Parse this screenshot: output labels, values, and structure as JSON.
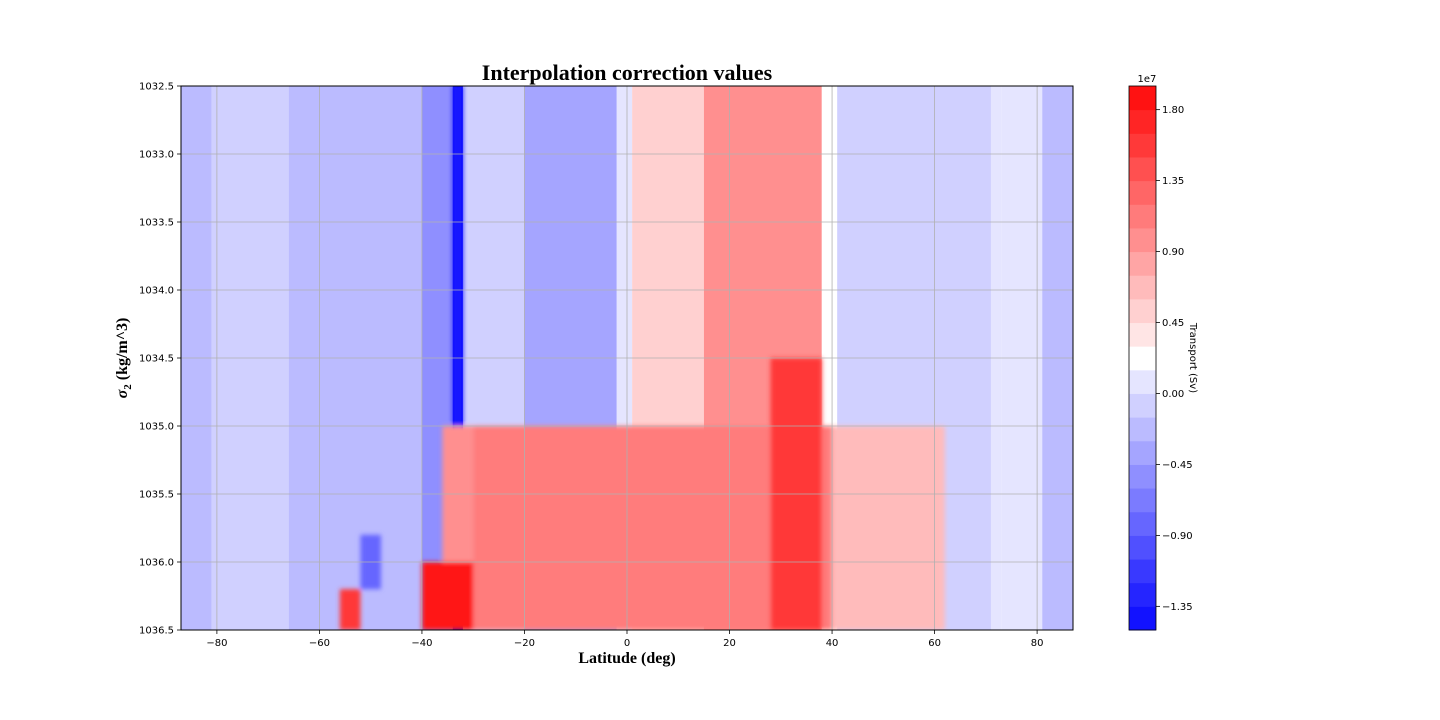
{
  "chart_data": {
    "type": "heatmap",
    "subtype": "filled-contour",
    "title": "Interpolation correction values",
    "xlabel": "Latitude (deg)",
    "ylabel_symbol": "σ",
    "ylabel_subscript": "2",
    "ylabel_units": "(kg/m^3)",
    "xlim": [
      -87,
      87
    ],
    "ylim": [
      1032.5,
      1036.5
    ],
    "y_inverted": true,
    "grid": true,
    "x_ticks": [
      {
        "value": -80,
        "label": "−80"
      },
      {
        "value": -60,
        "label": "−60"
      },
      {
        "value": -40,
        "label": "−40"
      },
      {
        "value": -20,
        "label": "−20"
      },
      {
        "value": 0,
        "label": "0"
      },
      {
        "value": 20,
        "label": "20"
      },
      {
        "value": 40,
        "label": "40"
      },
      {
        "value": 60,
        "label": "60"
      },
      {
        "value": 80,
        "label": "80"
      }
    ],
    "y_ticks": [
      {
        "value": 1032.5,
        "label": "1032.5"
      },
      {
        "value": 1033.0,
        "label": "1033.0"
      },
      {
        "value": 1033.5,
        "label": "1033.5"
      },
      {
        "value": 1034.0,
        "label": "1034.0"
      },
      {
        "value": 1034.5,
        "label": "1034.5"
      },
      {
        "value": 1035.0,
        "label": "1035.0"
      },
      {
        "value": 1035.5,
        "label": "1035.5"
      },
      {
        "value": 1036.0,
        "label": "1036.0"
      },
      {
        "value": 1036.5,
        "label": "1036.5"
      }
    ],
    "colorbar": {
      "label": "Transport (Sv)",
      "offset_text": "1e7",
      "cmap": "bwr",
      "vmin": -1.5,
      "vmax": 1.95,
      "levels_step": 0.15,
      "neg_colors": [
        "#1212ff",
        "#2525ff",
        "#3939ff",
        "#5050ff",
        "#6666ff",
        "#7b7bff",
        "#8f8fff",
        "#a5a5ff",
        "#bbbbff",
        "#d0d0ff",
        "#e5e5ff"
      ],
      "pos_colors": [
        "#ffffff",
        "#ffe5e5",
        "#ffd0d0",
        "#ffbbbb",
        "#ffa5a5",
        "#ff8f8f",
        "#ff7b7b",
        "#ff6666",
        "#ff5050",
        "#ff3939",
        "#ff2525",
        "#ff1212"
      ],
      "ticks": [
        {
          "value": -1.35,
          "label": "−1.35"
        },
        {
          "value": -0.9,
          "label": "−0.90"
        },
        {
          "value": -0.45,
          "label": "−0.45"
        },
        {
          "value": 0.0,
          "label": "0.00"
        },
        {
          "value": 0.45,
          "label": "0.45"
        },
        {
          "value": 0.9,
          "label": "0.90"
        },
        {
          "value": 1.35,
          "label": "1.35"
        },
        {
          "value": 1.8,
          "label": "1.80"
        }
      ]
    },
    "field_bands": [
      {
        "lat": [
          -87,
          -81
        ],
        "value": -0.2
      },
      {
        "lat": [
          -81,
          -66
        ],
        "value": -0.08
      },
      {
        "lat": [
          -66,
          -40
        ],
        "value": -0.2
      },
      {
        "lat": [
          -40,
          -34
        ],
        "value": -0.6
      },
      {
        "lat": [
          -34,
          -32
        ],
        "value": -1.4
      },
      {
        "lat": [
          -32,
          -20
        ],
        "value": -0.08
      },
      {
        "lat": [
          -20,
          -2
        ],
        "value": -0.35
      },
      {
        "lat": [
          -2,
          1
        ],
        "value": 0.05
      },
      {
        "lat": [
          1,
          15
        ],
        "value": 0.5
      },
      {
        "lat": [
          15,
          38
        ],
        "value": 1.0
      },
      {
        "lat": [
          38,
          41
        ],
        "value": 0.2
      },
      {
        "lat": [
          41,
          71
        ],
        "value": -0.08
      },
      {
        "lat": [
          71,
          73
        ],
        "value": 0.05
      },
      {
        "lat": [
          73,
          80
        ],
        "value": 0.1
      },
      {
        "lat": [
          80,
          81
        ],
        "value": 0.05
      },
      {
        "lat": [
          81,
          87
        ],
        "value": -0.2
      }
    ],
    "field_features": [
      {
        "lat": [
          -34,
          -32
        ],
        "sigma": [
          1032.5,
          1035.0
        ],
        "value": -1.4
      },
      {
        "lat": [
          -36,
          -30
        ],
        "sigma": [
          1035.0,
          1036.5
        ],
        "value": 0.9
      },
      {
        "lat": [
          -30,
          40
        ],
        "sigma": [
          1035.0,
          1036.5
        ],
        "value": 1.1
      },
      {
        "lat": [
          -40,
          -30
        ],
        "sigma": [
          1036.0,
          1036.5
        ],
        "value": 1.9
      },
      {
        "lat": [
          28,
          38
        ],
        "sigma": [
          1034.5,
          1036.5
        ],
        "value": 1.6
      },
      {
        "lat": [
          -52,
          -48
        ],
        "sigma": [
          1035.8,
          1036.2
        ],
        "value": -0.9
      },
      {
        "lat": [
          -56,
          -52
        ],
        "sigma": [
          1036.2,
          1036.5
        ],
        "value": 1.6
      },
      {
        "lat": [
          40,
          62
        ],
        "sigma": [
          1035.0,
          1036.5
        ],
        "value": 0.6
      }
    ]
  }
}
